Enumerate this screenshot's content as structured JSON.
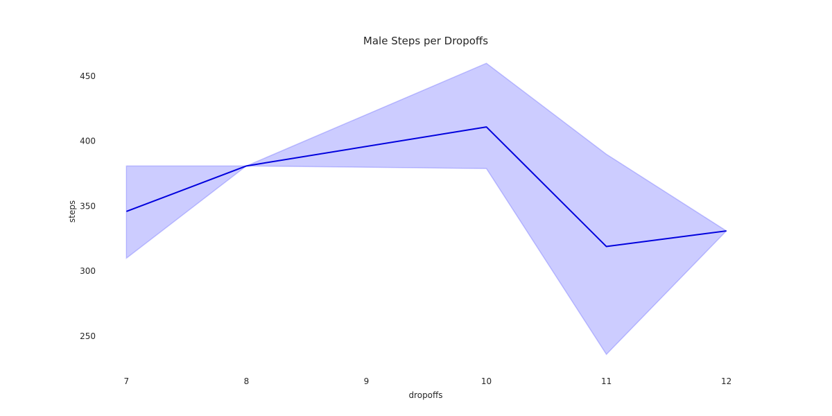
{
  "chart_data": {
    "type": "line",
    "title": "Male Steps per Dropoffs",
    "xlabel": "dropoffs",
    "ylabel": "steps",
    "x": [
      7,
      8,
      10,
      11,
      12
    ],
    "xticks": [
      7,
      8,
      9,
      10,
      11,
      12
    ],
    "yticks": [
      250,
      300,
      350,
      400,
      450
    ],
    "xlim": [
      6.9,
      12.1
    ],
    "ylim": [
      227,
      466
    ],
    "grid": false,
    "series": [
      {
        "values": [
          346,
          381,
          411,
          319,
          331
        ],
        "ci_lower": [
          310,
          381,
          379,
          236,
          331
        ],
        "ci_upper": [
          381,
          381,
          460,
          390,
          331
        ],
        "color": "#0000dd",
        "band_color": "#0000ff"
      }
    ]
  }
}
